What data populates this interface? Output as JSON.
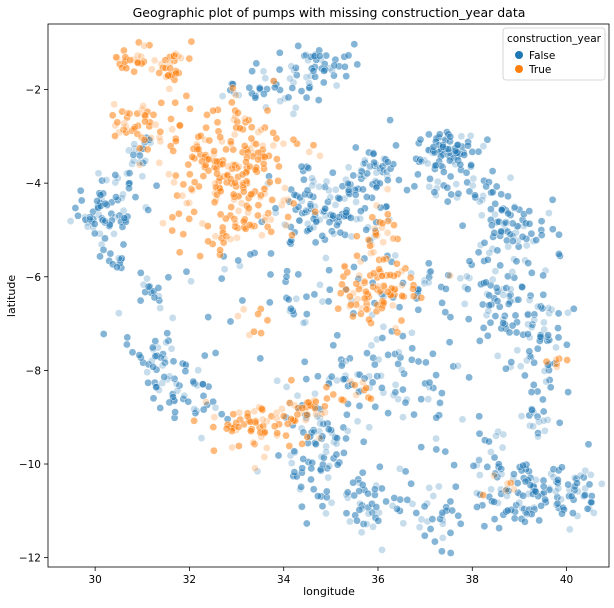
{
  "chart_data": {
    "type": "scatter",
    "title": "Geographic plot of pumps with missing construction_year data",
    "xlabel": "longitude",
    "ylabel": "latitude",
    "xlim": [
      29.0,
      40.9
    ],
    "ylim": [
      -12.2,
      -0.6
    ],
    "xticks": [
      30,
      32,
      34,
      36,
      38,
      40
    ],
    "yticks": [
      -2,
      -4,
      -6,
      -8,
      -10,
      -12
    ],
    "grid": false,
    "legend": {
      "title": "construction_year",
      "placement": "top-right",
      "entries": [
        "False",
        "True"
      ]
    },
    "series": [
      {
        "name": "False",
        "color": "#1f77b4",
        "clusters": [
          {
            "x": 30.2,
            "y": -4.6,
            "sx": 0.35,
            "sy": 0.4,
            "n": 70
          },
          {
            "x": 30.9,
            "y": -3.5,
            "sx": 0.2,
            "sy": 0.25,
            "n": 22
          },
          {
            "x": 31.2,
            "y": -6.3,
            "sx": 0.15,
            "sy": 0.15,
            "n": 14
          },
          {
            "x": 30.5,
            "y": -5.7,
            "sx": 0.12,
            "sy": 0.12,
            "n": 8
          },
          {
            "x": 31.4,
            "y": -7.8,
            "sx": 0.35,
            "sy": 0.5,
            "n": 55
          },
          {
            "x": 32.2,
            "y": -8.6,
            "sx": 0.35,
            "sy": 0.35,
            "n": 25
          },
          {
            "x": 34.4,
            "y": -1.6,
            "sx": 0.5,
            "sy": 0.35,
            "n": 60
          },
          {
            "x": 33.4,
            "y": -2.1,
            "sx": 0.4,
            "sy": 0.2,
            "n": 20
          },
          {
            "x": 34.6,
            "y": -4.6,
            "sx": 0.5,
            "sy": 0.45,
            "n": 90
          },
          {
            "x": 35.6,
            "y": -4.3,
            "sx": 0.35,
            "sy": 0.4,
            "n": 45
          },
          {
            "x": 36.1,
            "y": -3.6,
            "sx": 0.6,
            "sy": 0.3,
            "n": 40
          },
          {
            "x": 37.3,
            "y": -3.3,
            "sx": 0.4,
            "sy": 0.2,
            "n": 50
          },
          {
            "x": 37.6,
            "y": -3.6,
            "sx": 0.3,
            "sy": 0.5,
            "n": 35
          },
          {
            "x": 38.9,
            "y": -5.0,
            "sx": 0.45,
            "sy": 0.35,
            "n": 70
          },
          {
            "x": 38.2,
            "y": -4.3,
            "sx": 0.4,
            "sy": 0.3,
            "n": 25
          },
          {
            "x": 39.3,
            "y": -7.2,
            "sx": 0.4,
            "sy": 0.5,
            "n": 60
          },
          {
            "x": 38.6,
            "y": -6.4,
            "sx": 0.4,
            "sy": 0.4,
            "n": 35
          },
          {
            "x": 37.2,
            "y": -6.2,
            "sx": 0.8,
            "sy": 0.6,
            "n": 55
          },
          {
            "x": 34.7,
            "y": -9.7,
            "sx": 0.4,
            "sy": 0.6,
            "n": 80
          },
          {
            "x": 35.5,
            "y": -8.2,
            "sx": 0.6,
            "sy": 0.5,
            "n": 45
          },
          {
            "x": 36.8,
            "y": -8.3,
            "sx": 0.6,
            "sy": 0.6,
            "n": 40
          },
          {
            "x": 35.8,
            "y": -10.8,
            "sx": 0.6,
            "sy": 0.35,
            "n": 45
          },
          {
            "x": 37.4,
            "y": -11.0,
            "sx": 0.7,
            "sy": 0.35,
            "n": 45
          },
          {
            "x": 38.3,
            "y": -9.8,
            "sx": 0.5,
            "sy": 0.5,
            "n": 35
          },
          {
            "x": 39.8,
            "y": -10.6,
            "sx": 0.5,
            "sy": 0.3,
            "n": 80
          },
          {
            "x": 39.0,
            "y": -10.8,
            "sx": 0.35,
            "sy": 0.25,
            "n": 30
          },
          {
            "x": 39.4,
            "y": -9.0,
            "sx": 0.3,
            "sy": 0.5,
            "n": 25
          },
          {
            "x": 34.2,
            "y": -6.4,
            "sx": 0.6,
            "sy": 0.4,
            "n": 30
          },
          {
            "x": 33.0,
            "y": -5.8,
            "sx": 0.5,
            "sy": 0.3,
            "n": 10
          }
        ]
      },
      {
        "name": "True",
        "color": "#ff7f0e",
        "clusters": [
          {
            "x": 30.9,
            "y": -1.4,
            "sx": 0.25,
            "sy": 0.2,
            "n": 25
          },
          {
            "x": 31.6,
            "y": -1.5,
            "sx": 0.2,
            "sy": 0.3,
            "n": 25
          },
          {
            "x": 30.7,
            "y": -2.7,
            "sx": 0.2,
            "sy": 0.2,
            "n": 25
          },
          {
            "x": 31.5,
            "y": -2.9,
            "sx": 0.35,
            "sy": 0.35,
            "n": 25
          },
          {
            "x": 33.2,
            "y": -3.1,
            "sx": 0.6,
            "sy": 0.45,
            "n": 80
          },
          {
            "x": 32.5,
            "y": -3.9,
            "sx": 0.5,
            "sy": 0.4,
            "n": 60
          },
          {
            "x": 33.3,
            "y": -4.2,
            "sx": 0.5,
            "sy": 0.5,
            "n": 60
          },
          {
            "x": 32.7,
            "y": -5.0,
            "sx": 0.6,
            "sy": 0.2,
            "n": 40
          },
          {
            "x": 36.0,
            "y": -6.3,
            "sx": 0.4,
            "sy": 0.4,
            "n": 85
          },
          {
            "x": 36.0,
            "y": -5.0,
            "sx": 0.2,
            "sy": 0.3,
            "n": 25
          },
          {
            "x": 33.5,
            "y": -9.2,
            "sx": 0.55,
            "sy": 0.3,
            "n": 70
          },
          {
            "x": 34.6,
            "y": -8.8,
            "sx": 0.35,
            "sy": 0.15,
            "n": 20
          },
          {
            "x": 35.6,
            "y": -8.4,
            "sx": 0.3,
            "sy": 0.15,
            "n": 12
          },
          {
            "x": 39.8,
            "y": -7.8,
            "sx": 0.1,
            "sy": 0.1,
            "n": 6
          },
          {
            "x": 38.8,
            "y": -10.4,
            "sx": 0.3,
            "sy": 0.2,
            "n": 6
          },
          {
            "x": 33.3,
            "y": -7.0,
            "sx": 0.3,
            "sy": 0.3,
            "n": 8
          }
        ]
      }
    ]
  }
}
